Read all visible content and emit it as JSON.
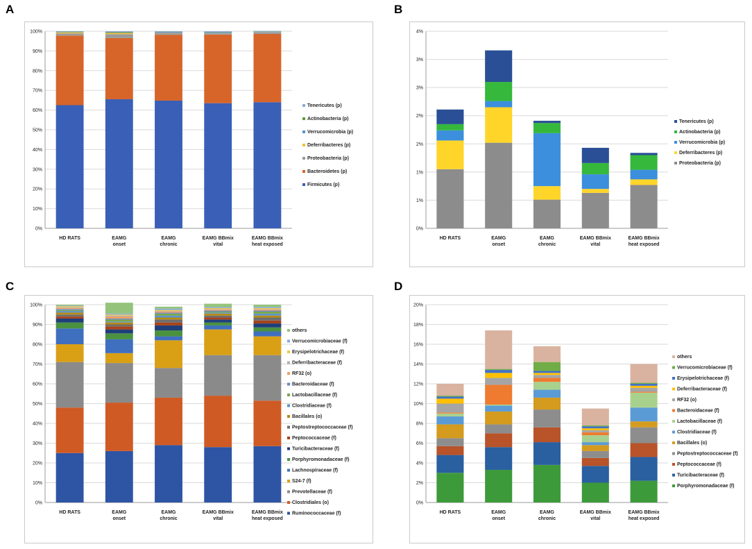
{
  "panels": [
    {
      "label": "A"
    },
    {
      "label": "B"
    },
    {
      "label": "C"
    },
    {
      "label": "D"
    }
  ],
  "chart_data": [
    {
      "type": "stacked-bar",
      "panel": "A",
      "categories": [
        [
          "HD RATS"
        ],
        [
          "EAMG",
          "onset"
        ],
        [
          "EAMG",
          "chronic"
        ],
        [
          "EAMG BBmix",
          "vital"
        ],
        [
          "EAMG BBmix",
          "heat exposed"
        ]
      ],
      "ylim": [
        0,
        100
      ],
      "yticks": [
        0,
        10,
        20,
        30,
        40,
        50,
        60,
        70,
        80,
        90,
        100
      ],
      "ytick_suffix": "%",
      "series": [
        {
          "name": "Firmicutes (p)",
          "color": "#3a5fb6",
          "values": [
            62.5,
            65.5,
            64.8,
            63.5,
            64.0
          ]
        },
        {
          "name": "Bacteroidetes (p)",
          "color": "#d7652a",
          "values": [
            35.3,
            31.0,
            33.4,
            34.8,
            34.6
          ]
        },
        {
          "name": "Proteobacteria (p)",
          "color": "#9a9a9a",
          "values": [
            1.1,
            2.0,
            1.0,
            0.6,
            0.8
          ]
        },
        {
          "name": "Deferribacteres (p)",
          "color": "#f2c230",
          "values": [
            0.5,
            0.6,
            0.1,
            0.1,
            0.1
          ]
        },
        {
          "name": "Verrucomicrobia (p)",
          "color": "#5b8fd0",
          "values": [
            0.2,
            0.2,
            0.4,
            0.3,
            0.2
          ]
        },
        {
          "name": "Actinobacteria (p)",
          "color": "#5e9e3c",
          "values": [
            0.2,
            0.3,
            0.1,
            0.2,
            0.2
          ]
        },
        {
          "name": "Tenericutes (p)",
          "color": "#8eaadc",
          "values": [
            0.2,
            0.4,
            0.2,
            0.5,
            0.3
          ]
        }
      ]
    },
    {
      "type": "stacked-bar",
      "panel": "B",
      "categories": [
        [
          "HD RATS"
        ],
        [
          "EAMG",
          "onset"
        ],
        [
          "EAMG",
          "chronic"
        ],
        [
          "EAMG BBmix",
          "vital"
        ],
        [
          "EAMG BBmix",
          "heat exposed"
        ]
      ],
      "ylim": [
        0,
        3.5
      ],
      "yticks": [
        0,
        0.5,
        1,
        1.5,
        2,
        2.5,
        3,
        3.5
      ],
      "ytick_labels": [
        "0%",
        "1%",
        "1%",
        "2%",
        "2%",
        "3%",
        "3%",
        "4%"
      ],
      "series": [
        {
          "name": "Proteobacteria (p)",
          "color": "#8c8c8c",
          "values": [
            1.05,
            1.52,
            0.51,
            0.63,
            0.77
          ]
        },
        {
          "name": "Deferribacteres (p)",
          "color": "#ffd52a",
          "values": [
            0.51,
            0.63,
            0.24,
            0.07,
            0.1
          ]
        },
        {
          "name": "Verrucomicrobia (p)",
          "color": "#3b8fdc",
          "values": [
            0.18,
            0.11,
            0.94,
            0.26,
            0.17
          ]
        },
        {
          "name": "Actinobacteria (p)",
          "color": "#35b83c",
          "values": [
            0.11,
            0.34,
            0.18,
            0.2,
            0.26
          ]
        },
        {
          "name": "Tenericutes (p)",
          "color": "#2a4f96",
          "values": [
            0.26,
            0.56,
            0.04,
            0.27,
            0.04
          ]
        }
      ]
    },
    {
      "type": "stacked-bar",
      "panel": "C",
      "categories": [
        [
          "HD RATS"
        ],
        [
          "EAMG",
          "onset"
        ],
        [
          "EAMG",
          "chronic"
        ],
        [
          "EAMG BBmix",
          "vital"
        ],
        [
          "EAMG BBmix",
          "heat exposed"
        ]
      ],
      "ylim": [
        0,
        100
      ],
      "yticks": [
        0,
        10,
        20,
        30,
        40,
        50,
        60,
        70,
        80,
        90,
        100
      ],
      "ytick_suffix": "%",
      "series": [
        {
          "name": "Ruminococcaceae (f)",
          "color": "#2e54a4",
          "values": [
            25.0,
            26.0,
            29.0,
            28.0,
            28.5
          ]
        },
        {
          "name": "Clostridiales (o)",
          "color": "#cf5a24",
          "values": [
            23.0,
            24.5,
            24.0,
            26.0,
            23.0
          ]
        },
        {
          "name": "Prevotellaceae (f)",
          "color": "#8a8a8a",
          "values": [
            23.0,
            20.0,
            15.0,
            20.5,
            23.0
          ]
        },
        {
          "name": "S24-7 (f)",
          "color": "#d9a016",
          "values": [
            9.0,
            5.0,
            14.0,
            13.0,
            9.5
          ]
        },
        {
          "name": "Lachnospiraceae (f)",
          "color": "#3f6fbf",
          "values": [
            8.0,
            7.0,
            2.0,
            2.0,
            2.5
          ]
        },
        {
          "name": "Porphyromonadaceae (f)",
          "color": "#4a9140",
          "values": [
            3.0,
            3.0,
            3.0,
            1.5,
            2.0
          ]
        },
        {
          "name": "Turicibacteraceae (f)",
          "color": "#1f3f7a",
          "values": [
            2.0,
            2.0,
            2.5,
            1.5,
            2.0
          ]
        },
        {
          "name": "Peptococcaceae (f)",
          "color": "#a8431b",
          "values": [
            1.0,
            1.5,
            1.5,
            1.0,
            1.5
          ]
        },
        {
          "name": "Peptostreptococcaceae (f)",
          "color": "#6e6e6e",
          "values": [
            1.0,
            1.0,
            1.5,
            1.0,
            1.5
          ]
        },
        {
          "name": "Bacillales (o)",
          "color": "#b88a12",
          "values": [
            1.0,
            1.0,
            1.0,
            1.0,
            1.0
          ]
        },
        {
          "name": "Clostridiaceae (f)",
          "color": "#5c93c9",
          "values": [
            0.8,
            0.5,
            1.0,
            0.5,
            1.0
          ]
        },
        {
          "name": "Lactobacillaceae (f)",
          "color": "#78a84a",
          "values": [
            0.5,
            1.0,
            1.0,
            0.5,
            1.0
          ]
        },
        {
          "name": "Bacteroidaceae (f)",
          "color": "#6b88c8",
          "values": [
            0.5,
            0.5,
            0.5,
            0.5,
            0.5
          ]
        },
        {
          "name": "RF32 (o)",
          "color": "#f0a060",
          "values": [
            0.5,
            1.0,
            0.5,
            0.5,
            0.5
          ]
        },
        {
          "name": "Deferribacteraceae (f)",
          "color": "#b0b0b0",
          "values": [
            0.4,
            0.5,
            0.3,
            0.3,
            0.3
          ]
        },
        {
          "name": "Erysipelotrichaceae (f)",
          "color": "#f3c840",
          "values": [
            0.5,
            0.5,
            0.5,
            0.5,
            0.5
          ]
        },
        {
          "name": "Verrucomicrobiaceae (f)",
          "color": "#86a9de",
          "values": [
            0.3,
            0.5,
            0.7,
            0.5,
            0.5
          ]
        },
        {
          "name": "others",
          "color": "#94c47c",
          "values": [
            0.5,
            5.5,
            1.0,
            1.7,
            1.2
          ]
        }
      ]
    },
    {
      "type": "stacked-bar",
      "panel": "D",
      "categories": [
        [
          "HD RATS"
        ],
        [
          "EAMG",
          "onset"
        ],
        [
          "EAMG",
          "chronic"
        ],
        [
          "EAMG BBmix",
          "vital"
        ],
        [
          "EAMG BBmix",
          "heat exposed"
        ]
      ],
      "ylim": [
        0,
        20
      ],
      "yticks": [
        0,
        2,
        4,
        6,
        8,
        10,
        12,
        14,
        16,
        18,
        20
      ],
      "ytick_suffix": "%",
      "series": [
        {
          "name": "Porphyromonadaceae (f)",
          "color": "#3d9a3a",
          "values": [
            3.0,
            3.3,
            3.8,
            2.0,
            2.2
          ]
        },
        {
          "name": "Turicibacteraceae (f)",
          "color": "#2a5fa0",
          "values": [
            1.8,
            2.3,
            2.3,
            1.7,
            2.4
          ]
        },
        {
          "name": "Peptococcaceae (f)",
          "color": "#b8532a",
          "values": [
            0.9,
            1.4,
            1.5,
            0.8,
            1.4
          ]
        },
        {
          "name": "Peptostreptococcaceae (f)",
          "color": "#8d8d8d",
          "values": [
            0.8,
            0.9,
            1.8,
            0.7,
            1.6
          ]
        },
        {
          "name": "Bacillales (o)",
          "color": "#d49b1e",
          "values": [
            1.4,
            1.3,
            1.2,
            0.6,
            0.6
          ]
        },
        {
          "name": "Clostridiaceae (f)",
          "color": "#5b9bd5",
          "values": [
            0.8,
            0.6,
            0.8,
            0.3,
            1.4
          ]
        },
        {
          "name": "Lactobacillaceae (f)",
          "color": "#a9d18e",
          "values": [
            0.3,
            0.1,
            0.8,
            0.7,
            1.5
          ]
        },
        {
          "name": "Bacteroidaceae (f)",
          "color": "#ee7b30",
          "values": [
            0.1,
            2.0,
            0.4,
            0.3,
            0.1
          ]
        },
        {
          "name": "RF32 (o)",
          "color": "#a5a5a5",
          "values": [
            0.9,
            0.7,
            0.3,
            0.2,
            0.4
          ]
        },
        {
          "name": "Deferribacteraceae (f)",
          "color": "#ffc000",
          "values": [
            0.5,
            0.5,
            0.2,
            0.2,
            0.2
          ]
        },
        {
          "name": "Erysipelotrichaceae (f)",
          "color": "#4472c4",
          "values": [
            0.2,
            0.3,
            0.2,
            0.2,
            0.2
          ]
        },
        {
          "name": "Verrucomicrobiaceae (f)",
          "color": "#70ad47",
          "values": [
            0.1,
            0.1,
            0.9,
            0.1,
            0.1
          ]
        },
        {
          "name": "others",
          "color": "#d9b3a0",
          "values": [
            1.2,
            3.9,
            1.6,
            1.7,
            1.9
          ]
        }
      ]
    }
  ]
}
